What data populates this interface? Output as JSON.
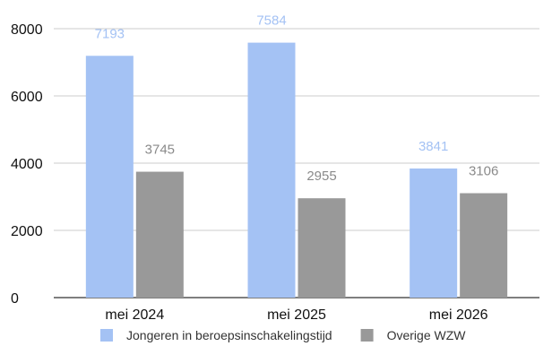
{
  "chart_data": {
    "type": "bar",
    "categories": [
      "mei 2024",
      "mei 2025",
      "mei 2026"
    ],
    "series": [
      {
        "name": "Jongeren in beroepsinschakelingstijd",
        "values": [
          7193,
          7584,
          3841
        ],
        "color": "#a4c2f4",
        "label_color": "#a4c2f4"
      },
      {
        "name": "Overige WZW",
        "values": [
          3745,
          2955,
          3106
        ],
        "color": "#999999",
        "label_color": "#8a8a8a"
      }
    ],
    "ylim": [
      0,
      8000
    ],
    "yticks": [
      0,
      2000,
      4000,
      6000,
      8000
    ],
    "grid": true,
    "legend_position": "bottom",
    "data_labels": true
  }
}
